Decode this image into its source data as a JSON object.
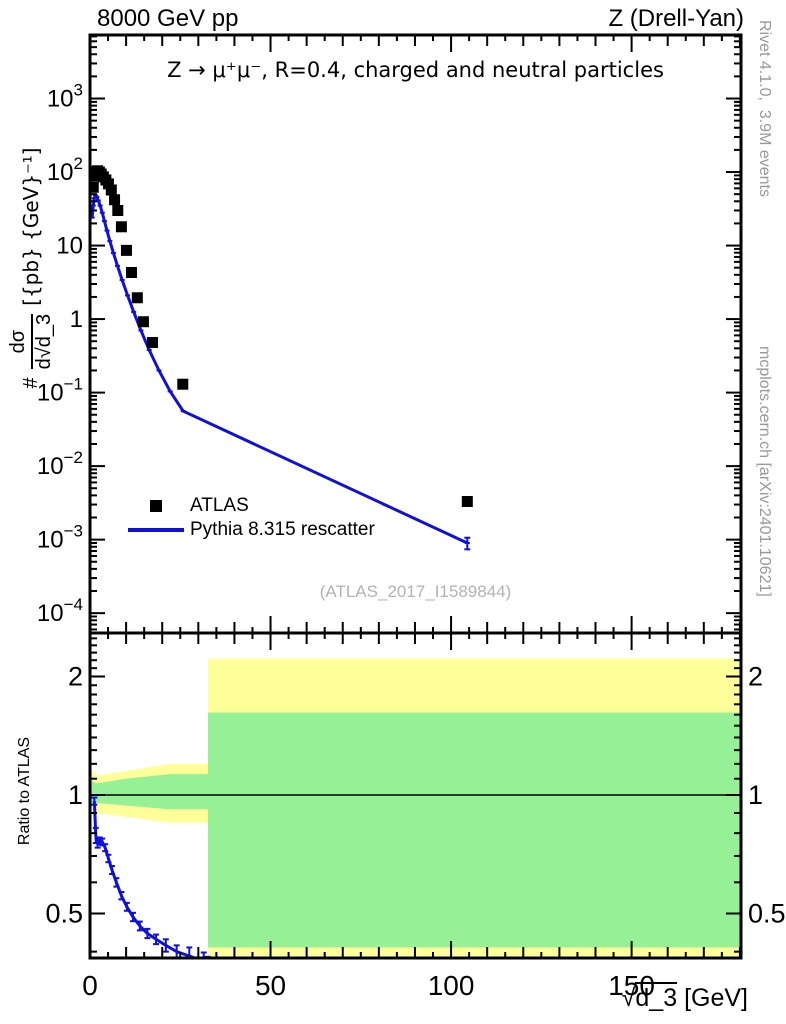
{
  "header": {
    "left": "8000 GeV pp",
    "right": "Z (Drell-Yan)"
  },
  "plot": {
    "title": "Z → μ⁺μ⁻, R=0.4, charged and neutral particles",
    "watermark": "(ATLAS_2017_I1589844)",
    "ylabel": {
      "prefix": "#",
      "frac_num": "dσ",
      "frac_den": "d√",
      "frac_den_radicand": "d_3",
      "units": "[{pb} {GeV}⁻¹]"
    },
    "xlabel": {
      "sqrt": "√",
      "radicand": "d_3",
      "units": " [GeV]"
    },
    "ratio_ylabel": "Ratio to ATLAS"
  },
  "legend": [
    {
      "label": "ATLAS",
      "marker": "black-square"
    },
    {
      "label": "Pythia 8.315 rescatter",
      "marker": "blue-line"
    }
  ],
  "margin_notes": {
    "top_right": "Rivet 4.1.0,  3.9M events",
    "bottom_right": "mcplots.cern.ch [arXiv:2401.10621]"
  },
  "colors": {
    "curve": "#1010dc",
    "band_outer": "#ffff99",
    "band_inner": "#96f096",
    "marker": "#000000",
    "note_gray": "#999999",
    "watermark_gray": "#b3b3b3"
  },
  "chart_data": [
    {
      "type": "line",
      "panel": "main",
      "xlabel": "sqrt(d_3) [GeV]",
      "ylabel": "# dsigma/d sqrt(d_3) [pb/GeV]",
      "xlim": [
        0,
        180.3
      ],
      "ylog10_range": [
        -4.27,
        3.864
      ],
      "xticks": [
        0,
        50,
        100,
        150
      ],
      "ytick_exponents": [
        3,
        2,
        1,
        0,
        -1,
        -2,
        -3,
        -4
      ],
      "grid": false,
      "legend_position": "left-middle",
      "series": [
        {
          "name": "ATLAS",
          "style": "squares",
          "point_format": [
            "x_gev",
            "dsigma_pb_per_gev"
          ],
          "points": [
            [
              0.9,
              62
            ],
            [
              1.3,
              88
            ],
            [
              1.7,
              101
            ],
            [
              2.1,
              104
            ],
            [
              2.6,
              100
            ],
            [
              3.1,
              94
            ],
            [
              3.7,
              86
            ],
            [
              4.4,
              78
            ],
            [
              5.1,
              69
            ],
            [
              5.9,
              57
            ],
            [
              6.8,
              42
            ],
            [
              7.7,
              30
            ],
            [
              8.7,
              18
            ],
            [
              10.1,
              8.6
            ],
            [
              11.5,
              4.3
            ],
            [
              13.1,
              1.95
            ],
            [
              14.8,
              0.92
            ],
            [
              17.3,
              0.48
            ],
            [
              25.7,
              0.13
            ],
            [
              104.5,
              0.0033
            ]
          ]
        },
        {
          "name": "Pythia 8.315 rescatter",
          "style": "line",
          "point_format": [
            "x_gev",
            "dsigma_pb_per_gev"
          ],
          "points": [
            [
              0.6,
              24
            ],
            [
              0.9,
              35
            ],
            [
              1.2,
              44
            ],
            [
              1.5,
              48
            ],
            [
              1.9,
              46
            ],
            [
              2.3,
              41
            ],
            [
              2.8,
              35
            ],
            [
              3.4,
              28
            ],
            [
              4.0,
              21.5
            ],
            [
              4.7,
              16
            ],
            [
              5.5,
              11.5
            ],
            [
              6.5,
              7.9
            ],
            [
              7.6,
              5.3
            ],
            [
              8.9,
              3.4
            ],
            [
              10.4,
              2.1
            ],
            [
              12.1,
              1.25
            ],
            [
              14.1,
              0.7
            ],
            [
              16.4,
              0.38
            ],
            [
              19.1,
              0.2
            ],
            [
              22.2,
              0.104
            ],
            [
              25.8,
              0.056
            ],
            [
              104.5,
              0.0009
            ]
          ],
          "endpoint_relative_error": 0.18
        }
      ]
    },
    {
      "type": "ratio",
      "panel": "ratio",
      "ylabel": "Ratio to ATLAS",
      "ylog2_range": [
        -1.375,
        1.367
      ],
      "yticks": [
        0.5,
        1,
        2
      ],
      "reference_line": 1,
      "bands": {
        "small": {
          "x": [
            0,
            2,
            10,
            22,
            32.7
          ],
          "outer_hi": [
            1.17,
            1.12,
            1.15,
            1.2,
            1.2
          ],
          "outer_lo": [
            0.89,
            0.9,
            0.88,
            0.85,
            0.85
          ],
          "inner_hi": [
            1.09,
            1.07,
            1.1,
            1.13,
            1.13
          ],
          "inner_lo": [
            0.945,
            0.955,
            0.94,
            0.92,
            0.92
          ]
        },
        "large": {
          "x": [
            32.7,
            180.3
          ],
          "outer_hi": 2.22,
          "outer_lo": 0.39,
          "inner_hi": 1.62,
          "inner_lo": 0.41
        }
      },
      "series": [
        {
          "name": "Pythia 8.315 rescatter / ATLAS",
          "style": "line+err",
          "point_format": [
            "x_gev",
            "ratio",
            "err"
          ],
          "points": [
            [
              1.2,
              0.965,
              0.02
            ],
            [
              1.6,
              0.79,
              0.035
            ],
            [
              2.1,
              0.755,
              0.02
            ],
            [
              2.7,
              0.765,
              0.015
            ],
            [
              3.4,
              0.76,
              0.015
            ],
            [
              4.2,
              0.735,
              0.015
            ],
            [
              5.1,
              0.69,
              0.015
            ],
            [
              6.1,
              0.645,
              0.015
            ],
            [
              7.3,
              0.6,
              0.015
            ],
            [
              8.7,
              0.555,
              0.012
            ],
            [
              10.2,
              0.52,
              0.012
            ],
            [
              11.9,
              0.49,
              0.012
            ],
            [
              13.8,
              0.465,
              0.012
            ],
            [
              15.9,
              0.445,
              0.012
            ],
            [
              18.3,
              0.43,
              0.012
            ],
            [
              21,
              0.415,
              0.015
            ],
            [
              24,
              0.4,
              0.015
            ],
            [
              27.5,
              0.39,
              0.02
            ],
            [
              31.5,
              0.378,
              0.02
            ],
            [
              32.6,
              0.368,
              0.02
            ]
          ]
        }
      ]
    }
  ]
}
